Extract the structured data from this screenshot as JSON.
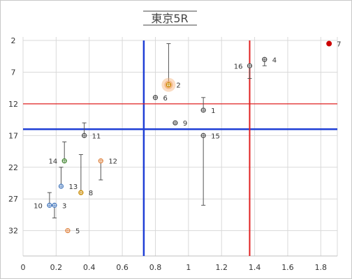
{
  "chart_data": {
    "type": "scatter",
    "title": "東京5R",
    "xlim": [
      0,
      1.9
    ],
    "ylim": [
      2,
      36
    ],
    "y_inverted": true,
    "x_ticks": [
      "0",
      "0.2",
      "0.4",
      "0.6",
      "0.8",
      "1",
      "1.2",
      "1.4",
      "1.6",
      "1.8"
    ],
    "x_tick_values": [
      0,
      0.2,
      0.4,
      0.6,
      0.8,
      1.0,
      1.2,
      1.4,
      1.6,
      1.8
    ],
    "y_ticks": [
      "2",
      "7",
      "12",
      "17",
      "22",
      "27",
      "32"
    ],
    "y_tick_values": [
      2,
      7,
      12,
      17,
      22,
      27,
      32
    ],
    "grid": true,
    "reference_lines": [
      {
        "orientation": "vertical",
        "x": 0.73,
        "color": "#1f3fd6"
      },
      {
        "orientation": "horizontal",
        "y": 16,
        "color": "#1f3fd6"
      },
      {
        "orientation": "vertical",
        "x": 1.37,
        "color": "#e02020"
      },
      {
        "orientation": "horizontal",
        "y": 12,
        "color": "#e02020"
      }
    ],
    "points": [
      {
        "label": "1",
        "x": 1.09,
        "y": 13,
        "err_low": 11,
        "err_high": 13,
        "color": "#555555",
        "label_side": "right"
      },
      {
        "label": "2",
        "x": 0.88,
        "y": 9,
        "err_low": 2.5,
        "err_high": 9,
        "color": "#c98a00",
        "label_side": "right",
        "highlight": true
      },
      {
        "label": "3",
        "x": 0.19,
        "y": 28,
        "err_low": 28,
        "err_high": 30,
        "color": "#4f7fc0",
        "label_side": "right"
      },
      {
        "label": "4",
        "x": 1.46,
        "y": 5,
        "err_low": 5,
        "err_high": 6,
        "color": "#555555",
        "label_side": "right"
      },
      {
        "label": "5",
        "x": 0.27,
        "y": 32,
        "err_low": 32,
        "err_high": 32,
        "color": "#e0894a",
        "label_side": "right"
      },
      {
        "label": "6",
        "x": 0.8,
        "y": 11,
        "err_low": 11,
        "err_high": 11,
        "color": "#555555",
        "label_side": "right"
      },
      {
        "label": "7",
        "x": 1.85,
        "y": 2.5,
        "err_low": 2.5,
        "err_high": 2.5,
        "color": "#cc0000",
        "label_side": "right",
        "filled": true
      },
      {
        "label": "8",
        "x": 0.35,
        "y": 26,
        "err_low": 20,
        "err_high": 26,
        "color": "#c98a00",
        "label_side": "right"
      },
      {
        "label": "9",
        "x": 0.92,
        "y": 15,
        "err_low": 15,
        "err_high": 15,
        "color": "#555555",
        "label_side": "right"
      },
      {
        "label": "10",
        "x": 0.16,
        "y": 28,
        "err_low": 26,
        "err_high": 28,
        "color": "#4f7fc0",
        "label_side": "left"
      },
      {
        "label": "11",
        "x": 0.37,
        "y": 17,
        "err_low": 15,
        "err_high": 17,
        "color": "#555555",
        "label_side": "right"
      },
      {
        "label": "12",
        "x": 0.47,
        "y": 21,
        "err_low": 21,
        "err_high": 24,
        "color": "#e0894a",
        "label_side": "right"
      },
      {
        "label": "13",
        "x": 0.23,
        "y": 25,
        "err_low": 22,
        "err_high": 25,
        "color": "#4f7fc0",
        "label_side": "right"
      },
      {
        "label": "14",
        "x": 0.25,
        "y": 21,
        "err_low": 18,
        "err_high": 21,
        "color": "#4a8a3a",
        "label_side": "left"
      },
      {
        "label": "15",
        "x": 1.09,
        "y": 17,
        "err_low": 17,
        "err_high": 28,
        "color": "#555555",
        "label_side": "right"
      },
      {
        "label": "16",
        "x": 1.37,
        "y": 6,
        "err_low": 6,
        "err_high": 8,
        "color": "#555555",
        "label_side": "left"
      }
    ]
  }
}
